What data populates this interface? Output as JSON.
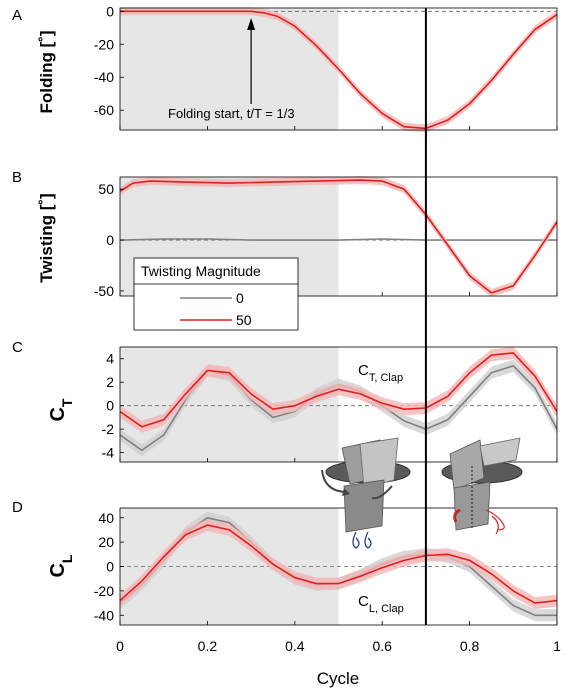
{
  "colors": {
    "red": "#e0201d",
    "red_band": "#f5b5b7",
    "gray": "#808080",
    "gray_band": "#cfcfcf",
    "shade": "#e6e6e6",
    "accent_blue": "#2e3d8a"
  },
  "icons": [
    "flapping-wing-clap-icon",
    "flapping-wing-twist-icon"
  ],
  "legend": {
    "title": "Twisting Magnitude",
    "placement": "lower-left of panel B",
    "entries": [
      {
        "label": "0",
        "color": "#808080"
      },
      {
        "label": "50",
        "color": "#e0201d"
      }
    ]
  },
  "xaxis": {
    "label": "Cycle",
    "ticks": [
      "0",
      "0.2",
      "0.4",
      "0.6",
      "0.8",
      "1"
    ]
  },
  "chart_data": [
    {
      "panel": "A",
      "type": "line",
      "ylabel": "Folding [˚]",
      "xlim": [
        0,
        1
      ],
      "ylim": [
        -72,
        2
      ],
      "yticks": [
        0,
        -20,
        -40,
        -60
      ],
      "shaded_region": [
        0,
        0.5
      ],
      "vline": 0.7,
      "annotation": "Folding start, t/T = 1/3",
      "annotation_x": 0.3,
      "series": [
        {
          "name": "50",
          "x": [
            0,
            0.05,
            0.1,
            0.15,
            0.2,
            0.25,
            0.3,
            0.33,
            0.36,
            0.4,
            0.45,
            0.5,
            0.55,
            0.6,
            0.65,
            0.7,
            0.75,
            0.8,
            0.85,
            0.9,
            0.95,
            1.0
          ],
          "y": [
            0,
            0,
            0,
            0,
            0,
            0,
            0,
            -1,
            -3,
            -9,
            -21,
            -35,
            -50,
            -62,
            -70,
            -71,
            -66,
            -56,
            -42,
            -26,
            -11,
            -2
          ]
        }
      ]
    },
    {
      "panel": "B",
      "type": "line",
      "ylabel": "Twisting [˚]",
      "xlim": [
        0,
        1
      ],
      "ylim": [
        -55,
        62
      ],
      "yticks": [
        50,
        0,
        -50
      ],
      "shaded_region": [
        0,
        0.5
      ],
      "vline": 0.7,
      "series": [
        {
          "name": "0",
          "x": [
            0,
            0.1,
            0.2,
            0.3,
            0.4,
            0.5,
            0.6,
            0.7,
            0.8,
            0.9,
            1.0
          ],
          "y": [
            0,
            1,
            1,
            0,
            0,
            0,
            1,
            0,
            0,
            0,
            0
          ]
        },
        {
          "name": "50",
          "x": [
            0,
            0.03,
            0.07,
            0.15,
            0.25,
            0.35,
            0.45,
            0.55,
            0.6,
            0.65,
            0.7,
            0.75,
            0.8,
            0.85,
            0.9,
            0.95,
            1.0
          ],
          "y": [
            48,
            56,
            58,
            57,
            56,
            57,
            58,
            59,
            58,
            50,
            25,
            -5,
            -35,
            -52,
            -45,
            -15,
            18
          ]
        }
      ]
    },
    {
      "panel": "C",
      "type": "line",
      "ylabel": "C_T",
      "xlim": [
        0,
        1
      ],
      "ylim": [
        -4.8,
        5.0
      ],
      "yticks": [
        4,
        2,
        0,
        -2,
        -4
      ],
      "shaded_region": [
        0,
        0.5
      ],
      "vline": 0.7,
      "annotation": "C_T, Clap",
      "series": [
        {
          "name": "0",
          "x": [
            0,
            0.05,
            0.1,
            0.15,
            0.2,
            0.25,
            0.3,
            0.35,
            0.4,
            0.45,
            0.5,
            0.55,
            0.6,
            0.65,
            0.7,
            0.75,
            0.8,
            0.85,
            0.9,
            0.95,
            1.0
          ],
          "y": [
            -2.5,
            -3.8,
            -2.5,
            0.5,
            3.0,
            2.6,
            0.5,
            -1.0,
            -0.5,
            1.0,
            1.8,
            1.2,
            0.0,
            -1.3,
            -2.0,
            -1.2,
            0.8,
            2.8,
            3.4,
            1.5,
            -2.0
          ]
        },
        {
          "name": "50",
          "x": [
            0,
            0.05,
            0.1,
            0.15,
            0.2,
            0.25,
            0.3,
            0.35,
            0.4,
            0.45,
            0.5,
            0.55,
            0.6,
            0.65,
            0.7,
            0.75,
            0.8,
            0.85,
            0.9,
            0.95,
            1.0
          ],
          "y": [
            -0.5,
            -1.8,
            -1.2,
            1.0,
            3.0,
            2.8,
            1.0,
            -0.3,
            0.0,
            0.8,
            1.4,
            1.0,
            0.2,
            -0.3,
            -0.2,
            0.8,
            2.8,
            4.3,
            4.5,
            2.5,
            -0.5
          ]
        }
      ]
    },
    {
      "panel": "D",
      "type": "line",
      "ylabel": "C_L",
      "xlim": [
        0,
        1
      ],
      "ylim": [
        -48,
        48
      ],
      "yticks": [
        40,
        20,
        0,
        -20,
        -40
      ],
      "shaded_region": [
        0,
        0.5
      ],
      "vline": 0.7,
      "annotation": "C_L, Clap",
      "series": [
        {
          "name": "0",
          "x": [
            0,
            0.05,
            0.1,
            0.15,
            0.2,
            0.25,
            0.3,
            0.35,
            0.4,
            0.45,
            0.5,
            0.55,
            0.6,
            0.65,
            0.7,
            0.75,
            0.8,
            0.85,
            0.9,
            0.95,
            1.0
          ],
          "y": [
            -30,
            -15,
            5,
            28,
            40,
            36,
            20,
            2,
            -10,
            -15,
            -14,
            -7,
            2,
            8,
            10,
            8,
            0,
            -16,
            -32,
            -40,
            -40
          ]
        },
        {
          "name": "50",
          "x": [
            0,
            0.05,
            0.1,
            0.15,
            0.2,
            0.25,
            0.3,
            0.35,
            0.4,
            0.45,
            0.5,
            0.55,
            0.6,
            0.65,
            0.7,
            0.75,
            0.8,
            0.85,
            0.9,
            0.95,
            1.0
          ],
          "y": [
            -28,
            -12,
            8,
            26,
            34,
            30,
            17,
            2,
            -9,
            -14,
            -14,
            -8,
            -1,
            5,
            9,
            10,
            5,
            -6,
            -20,
            -30,
            -28
          ]
        }
      ]
    }
  ],
  "labels": {
    "panelA": "A",
    "panelB": "B",
    "panelC": "C",
    "panelD": "D",
    "ylabelA": "Folding [˚]",
    "ylabelB": "Twisting [˚]",
    "ylabelC_main": "C",
    "ylabelC_sub": "T",
    "ylabelD_main": "C",
    "ylabelD_sub": "L",
    "annoA": "Folding start, t/T = 1/3",
    "clapC_main": "C",
    "clapC_sub": "T, Clap",
    "clapD_main": "C",
    "clapD_sub": "L, Clap"
  }
}
